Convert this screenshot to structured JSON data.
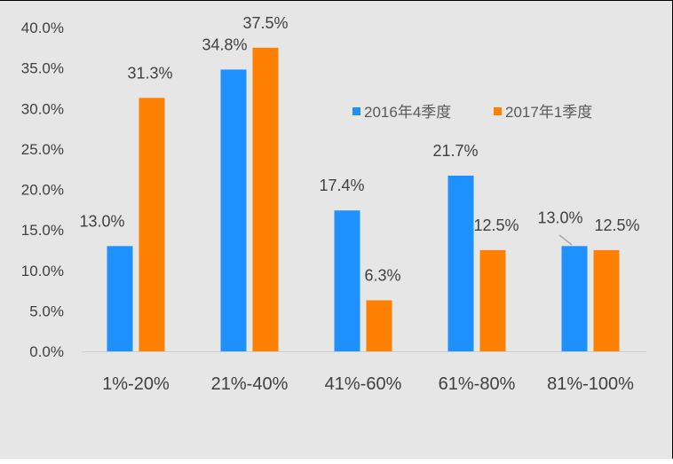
{
  "chart_data": {
    "type": "bar",
    "title": "",
    "xlabel": "",
    "ylabel": "",
    "categories": [
      "1%-20%",
      "21%-40%",
      "41%-60%",
      "61%-80%",
      "81%-100%"
    ],
    "series": [
      {
        "name": "2016年4季度",
        "color": "#1e90ff",
        "values": [
          13.0,
          34.8,
          17.4,
          21.7,
          13.0
        ],
        "labels": [
          "13.0%",
          "34.8%",
          "17.4%",
          "21.7%",
          "13.0%"
        ]
      },
      {
        "name": "2017年1季度",
        "color": "#ff8000",
        "values": [
          31.3,
          37.5,
          6.3,
          12.5,
          12.5
        ],
        "labels": [
          "31.3%",
          "37.5%",
          "6.3%",
          "12.5%",
          "12.5%"
        ]
      }
    ],
    "ylim": [
      0,
      40
    ],
    "yticks": [
      "0.0%",
      "5.0%",
      "10.0%",
      "15.0%",
      "20.0%",
      "25.0%",
      "30.0%",
      "35.0%",
      "40.0%"
    ],
    "grid": false,
    "legend_position": "top-right"
  }
}
